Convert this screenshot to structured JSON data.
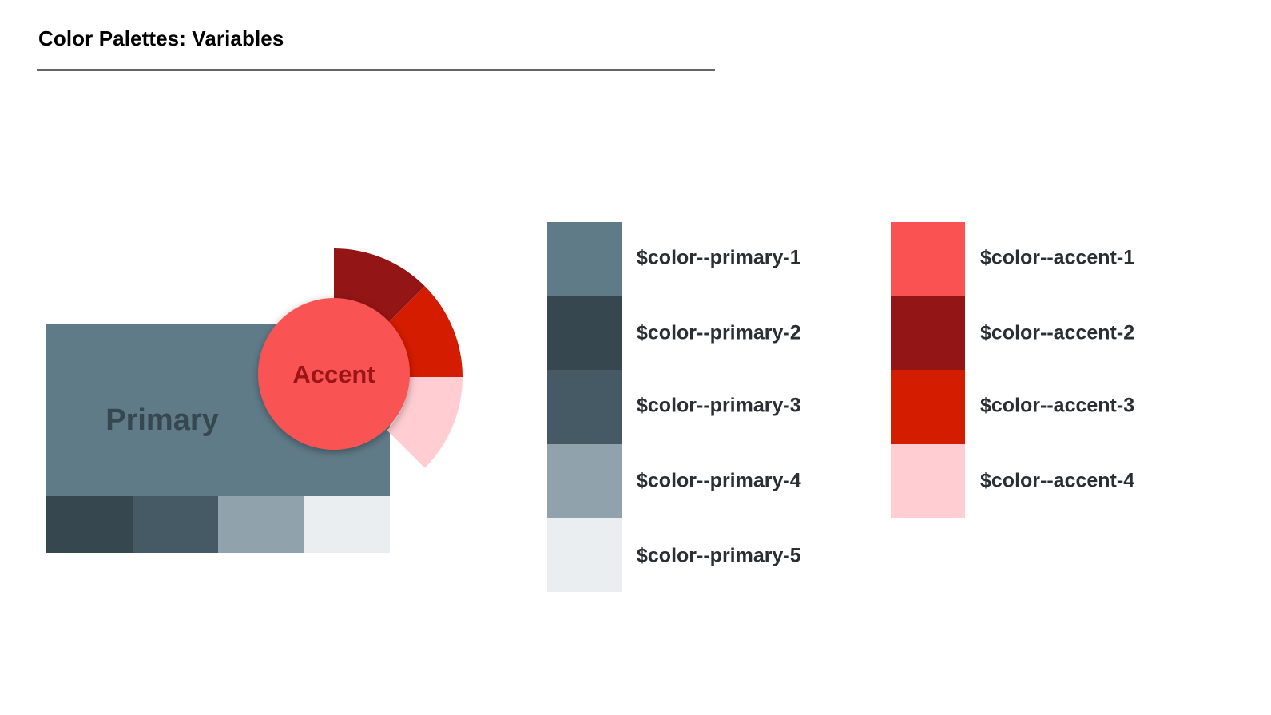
{
  "title": "Color Palettes: Variables",
  "illustration": {
    "primary_label": "Primary",
    "accent_label": "Accent",
    "primary_color": "#607b88",
    "primary_shades": [
      "#37474f",
      "#465a65",
      "#90a3ac",
      "#ebeef1"
    ],
    "accent_color": "#fa5252",
    "accent_text_color": "#9a1616",
    "accent_ring": [
      "#931515",
      "#d41c00",
      "#ffcdd2"
    ]
  },
  "primary_palette": [
    {
      "name": "$color--primary-1",
      "color": "#607b88"
    },
    {
      "name": "$color--primary-2",
      "color": "#37474f"
    },
    {
      "name": "$color--primary-3",
      "color": "#465a65"
    },
    {
      "name": "$color--primary-4",
      "color": "#90a3ac"
    },
    {
      "name": "$color--primary-5",
      "color": "#ebeef1"
    }
  ],
  "accent_palette": [
    {
      "name": "$color--accent-1",
      "color": "#fa5252"
    },
    {
      "name": "$color--accent-2",
      "color": "#931515"
    },
    {
      "name": "$color--accent-3",
      "color": "#d41c00"
    },
    {
      "name": "$color--accent-4",
      "color": "#ffcdd2"
    }
  ]
}
